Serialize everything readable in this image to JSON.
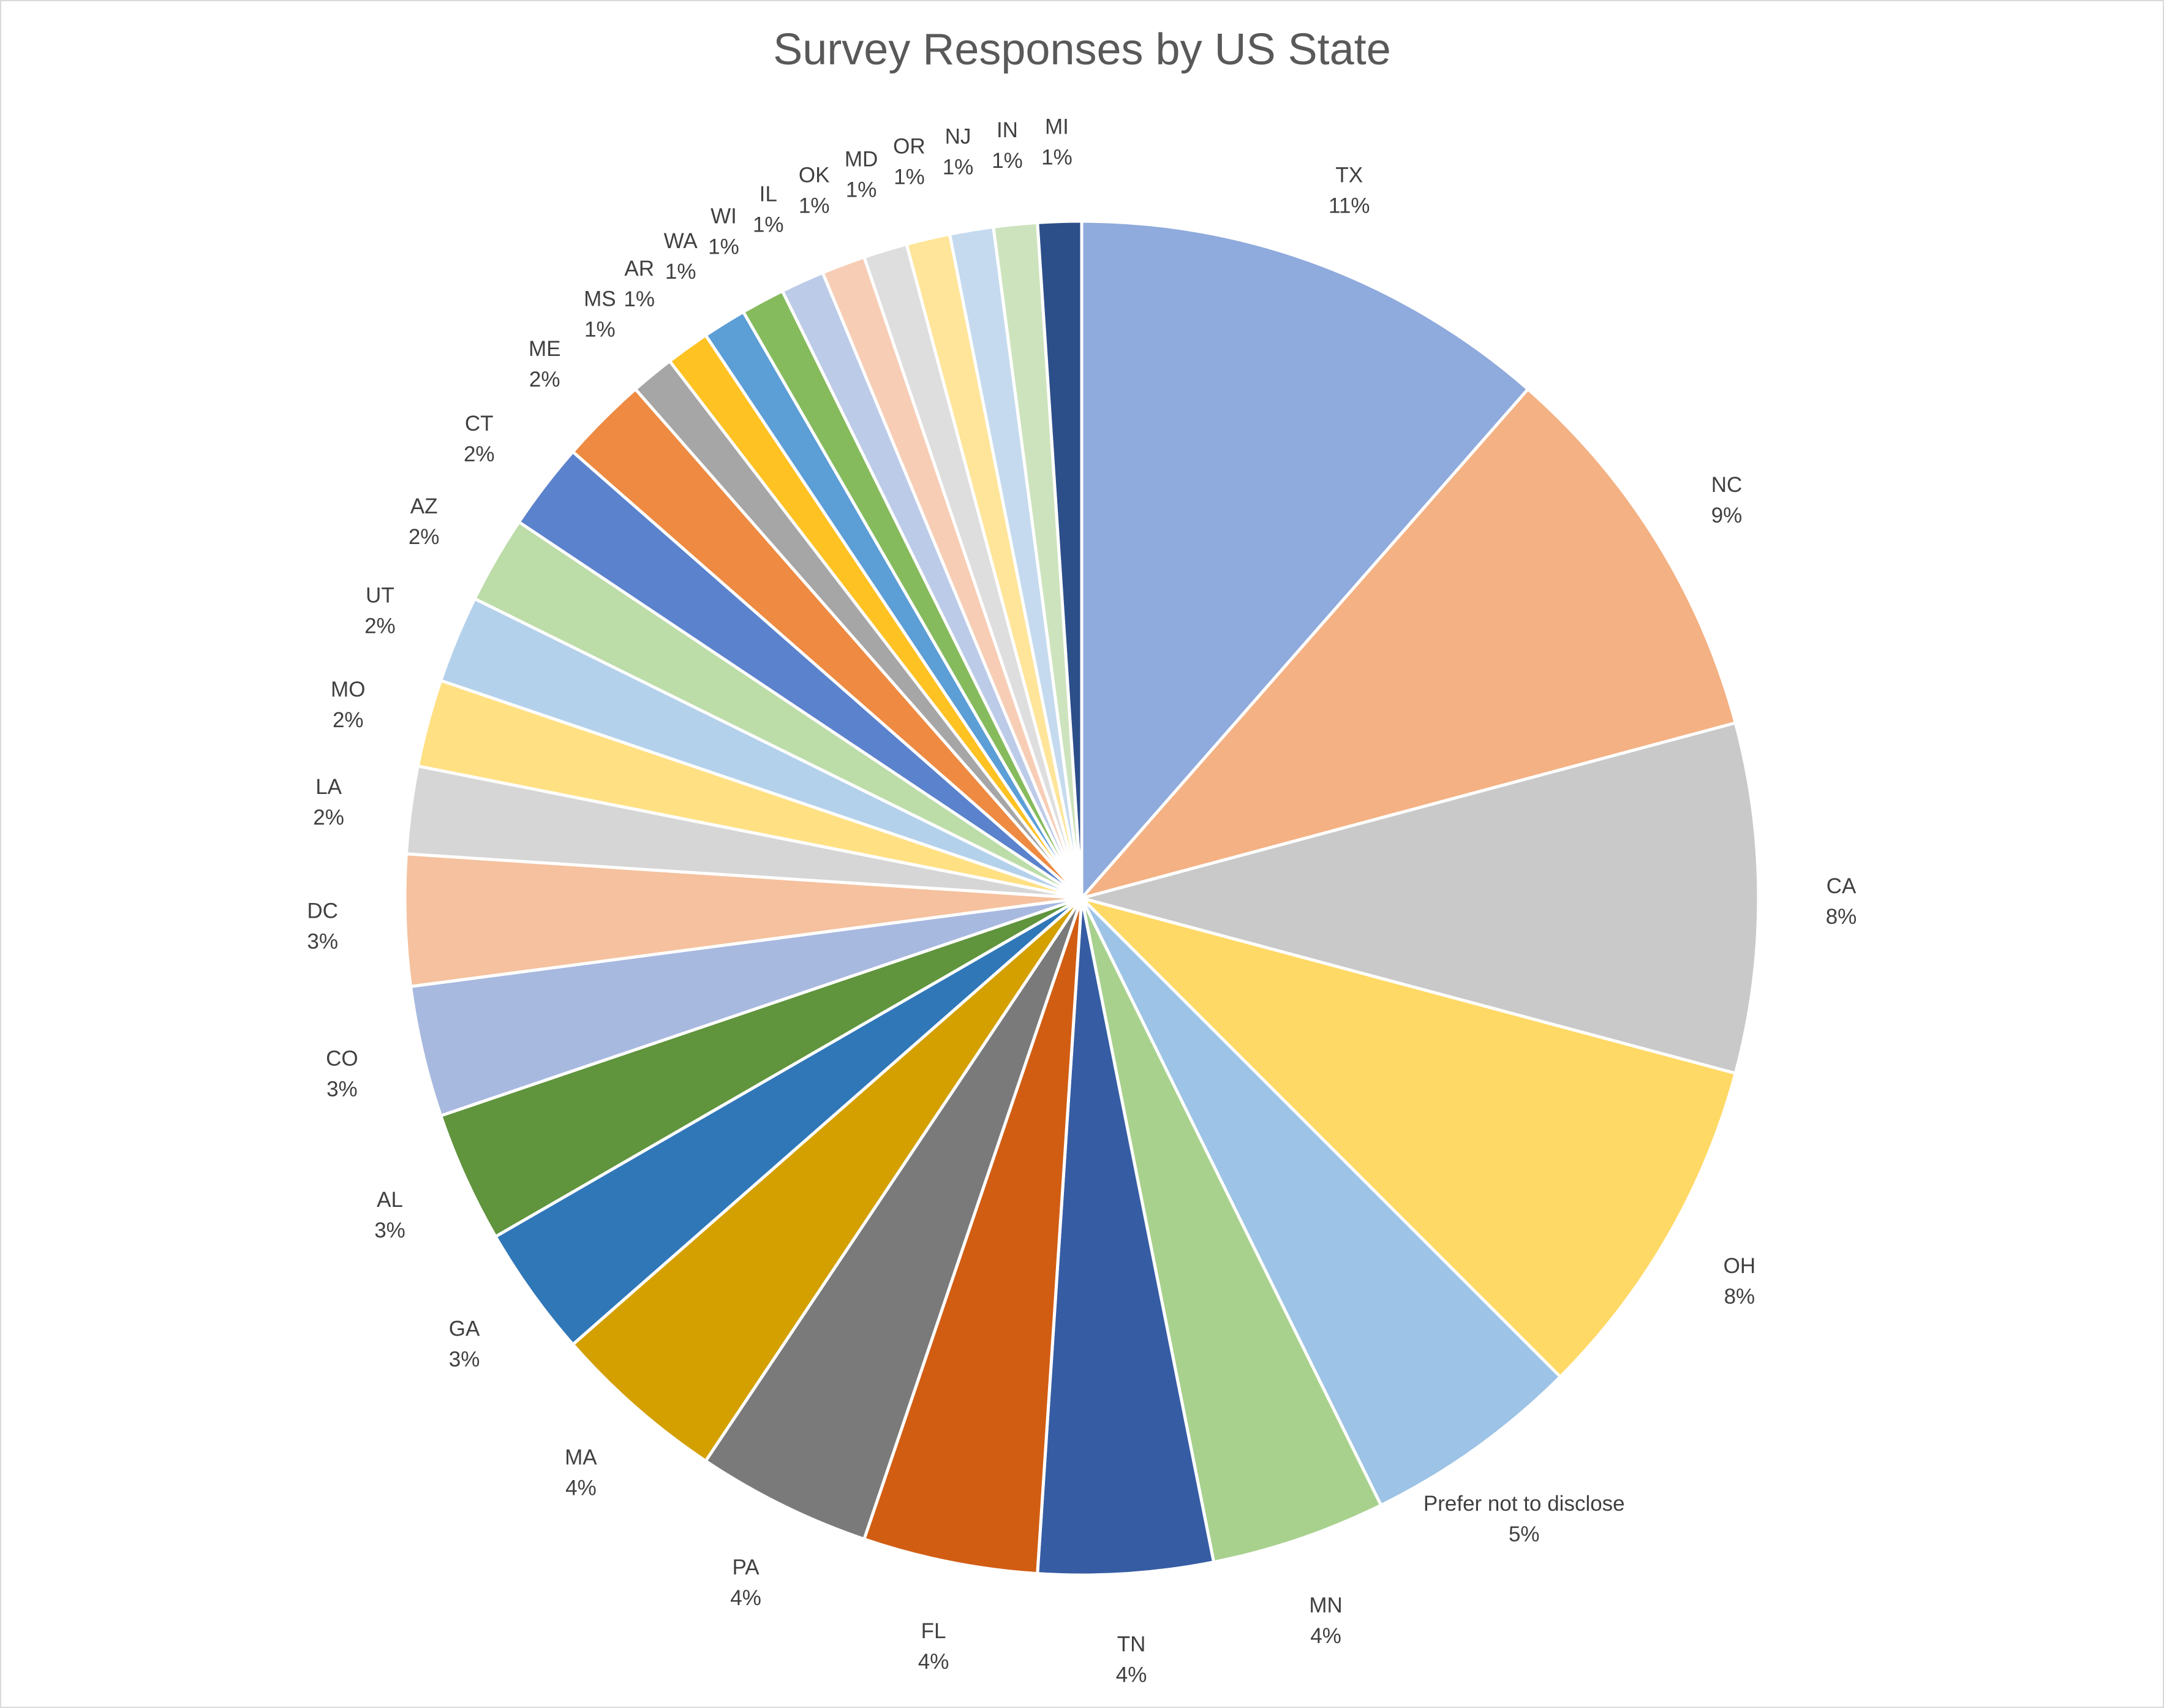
{
  "chart_data": {
    "type": "pie",
    "title": "Survey Responses by US State",
    "slices": [
      {
        "label": "TX",
        "value": 11,
        "value_label": "11%",
        "color": "#8faadc"
      },
      {
        "label": "NC",
        "value": 9,
        "value_label": "9%",
        "color": "#f4b183"
      },
      {
        "label": "CA",
        "value": 8,
        "value_label": "8%",
        "color": "#c9c9c9"
      },
      {
        "label": "OH",
        "value": 8,
        "value_label": "8%",
        "color": "#ffd966"
      },
      {
        "label": "Prefer not to disclose",
        "value": 5,
        "value_label": "5%",
        "color": "#9dc3e6"
      },
      {
        "label": "MN",
        "value": 4,
        "value_label": "4%",
        "color": "#a9d18e"
      },
      {
        "label": "TN",
        "value": 4,
        "value_label": "4%",
        "color": "#365da3"
      },
      {
        "label": "FL",
        "value": 4,
        "value_label": "4%",
        "color": "#d15d13"
      },
      {
        "label": "PA",
        "value": 4,
        "value_label": "4%",
        "color": "#7a7a7a"
      },
      {
        "label": "MA",
        "value": 4,
        "value_label": "4%",
        "color": "#d4a000"
      },
      {
        "label": "GA",
        "value": 3,
        "value_label": "3%",
        "color": "#3077b8"
      },
      {
        "label": "AL",
        "value": 3,
        "value_label": "3%",
        "color": "#60943d"
      },
      {
        "label": "CO",
        "value": 3,
        "value_label": "3%",
        "color": "#a8b9e0"
      },
      {
        "label": "DC",
        "value": 3,
        "value_label": "3%",
        "color": "#f5c19e"
      },
      {
        "label": "LA",
        "value": 2,
        "value_label": "2%",
        "color": "#d6d6d6"
      },
      {
        "label": "MO",
        "value": 2,
        "value_label": "2%",
        "color": "#ffe083"
      },
      {
        "label": "UT",
        "value": 2,
        "value_label": "2%",
        "color": "#b4d1eb"
      },
      {
        "label": "AZ",
        "value": 2,
        "value_label": "2%",
        "color": "#bcdca8"
      },
      {
        "label": "CT",
        "value": 2,
        "value_label": "2%",
        "color": "#5b82cc"
      },
      {
        "label": "ME",
        "value": 2,
        "value_label": "2%",
        "color": "#ee8a42"
      },
      {
        "label": "MS",
        "value": 1,
        "value_label": "1%",
        "color": "#a6a6a6"
      },
      {
        "label": "AR",
        "value": 1,
        "value_label": "1%",
        "color": "#ffc223"
      },
      {
        "label": "WA",
        "value": 1,
        "value_label": "1%",
        "color": "#5c9ed6"
      },
      {
        "label": "WI",
        "value": 1,
        "value_label": "1%",
        "color": "#86bb5d"
      },
      {
        "label": "IL",
        "value": 1,
        "value_label": "1%",
        "color": "#bccbe8"
      },
      {
        "label": "OK",
        "value": 1,
        "value_label": "1%",
        "color": "#f7cdb5"
      },
      {
        "label": "MD",
        "value": 1,
        "value_label": "1%",
        "color": "#dedede"
      },
      {
        "label": "OR",
        "value": 1,
        "value_label": "1%",
        "color": "#ffe599"
      },
      {
        "label": "NJ",
        "value": 1,
        "value_label": "1%",
        "color": "#c5daee"
      },
      {
        "label": "IN",
        "value": 1,
        "value_label": "1%",
        "color": "#cde3bd"
      },
      {
        "label": "MI",
        "value": 1,
        "value_label": "1%",
        "color": "#2c4f8a"
      }
    ],
    "start_position": "top",
    "direction": "clockwise",
    "legend": "none",
    "data_labels": "outside-end"
  }
}
